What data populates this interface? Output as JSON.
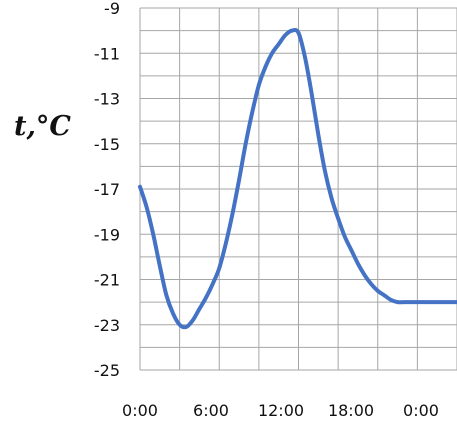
{
  "chart_data": {
    "type": "line",
    "title": "",
    "xlabel": "",
    "ylabel": "t,°C",
    "x_tick_labels": [
      "0:00",
      "6:00",
      "12:00",
      "18:00",
      "0:00"
    ],
    "y_tick_labels": [
      "-9",
      "-11",
      "-13",
      "-15",
      "-17",
      "-19",
      "-21",
      "-23",
      "-25"
    ],
    "xlim": [
      0,
      24
    ],
    "ylim": [
      -25,
      -9
    ],
    "grid": true,
    "series": [
      {
        "color": "#4472c4",
        "x": [
          0,
          0.5,
          1,
          1.5,
          2,
          2.5,
          3,
          3.5,
          4,
          4.5,
          5,
          5.5,
          6,
          6.5,
          7,
          7.5,
          8,
          8.5,
          9,
          9.5,
          10,
          10.5,
          11,
          11.5,
          12,
          12.5,
          13,
          13.5,
          14,
          14.5,
          15,
          15.5,
          16,
          16.5,
          17,
          17.5,
          18,
          18.5,
          19,
          19.5,
          20,
          20.5,
          21,
          21.5,
          22,
          22.5,
          23,
          23.5,
          24
        ],
        "y": [
          -16.9,
          -17.8,
          -19.0,
          -20.4,
          -21.7,
          -22.5,
          -23.0,
          -23.1,
          -22.8,
          -22.3,
          -21.8,
          -21.2,
          -20.5,
          -19.4,
          -18.1,
          -16.6,
          -15.0,
          -13.6,
          -12.4,
          -11.6,
          -11.0,
          -10.6,
          -10.2,
          -10.0,
          -10.1,
          -11.2,
          -12.8,
          -14.6,
          -16.2,
          -17.4,
          -18.3,
          -19.1,
          -19.7,
          -20.3,
          -20.8,
          -21.2,
          -21.5,
          -21.7,
          -21.9,
          -22.0,
          -22.0,
          -22.0,
          -22.0,
          -22.0,
          -22.0,
          -22.0,
          -22.0,
          -22.0,
          -22.0
        ]
      }
    ]
  }
}
